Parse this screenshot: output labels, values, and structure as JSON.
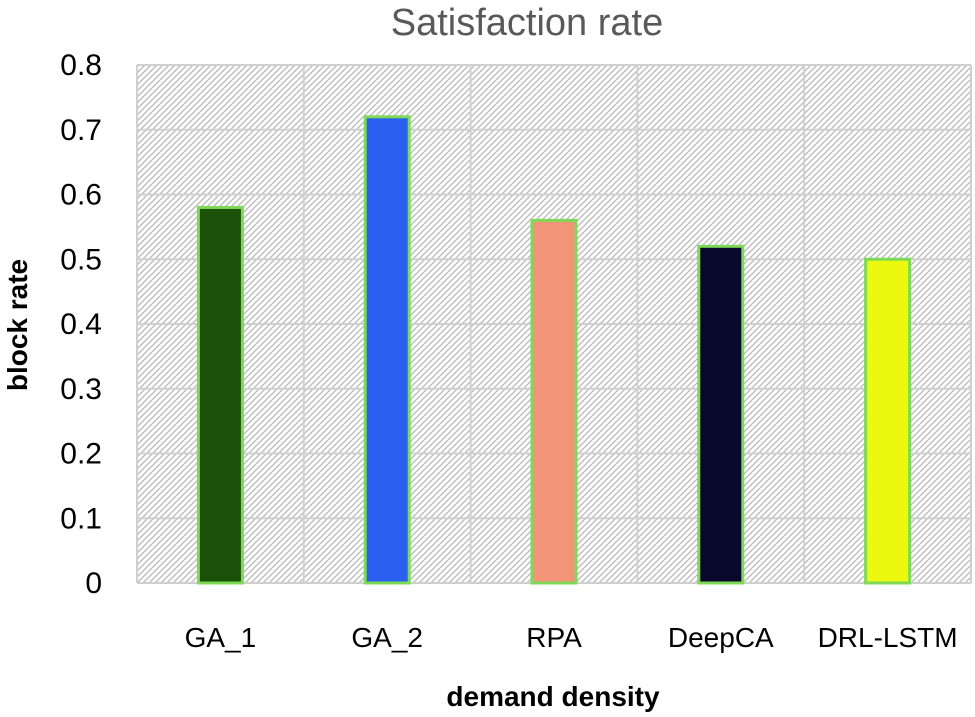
{
  "chart_data": {
    "type": "bar",
    "title": "Satisfaction rate",
    "xlabel": "demand density",
    "ylabel": "block rate",
    "categories": [
      "GA_1",
      "GA_2",
      "RPA",
      "DeepCA",
      "DRL-LSTM"
    ],
    "values": [
      0.58,
      0.72,
      0.56,
      0.52,
      0.5
    ],
    "bar_colors": [
      "#1a5008",
      "#2a5ff0",
      "#f29478",
      "#08082a",
      "#ecf80e"
    ],
    "bar_edge_color": "#7ed957",
    "ylim": [
      0,
      0.8
    ],
    "yticks": [
      "0",
      "0.1",
      "0.2",
      "0.3",
      "0.4",
      "0.5",
      "0.6",
      "0.7",
      "0.8"
    ],
    "grid": true,
    "legend": "none"
  }
}
